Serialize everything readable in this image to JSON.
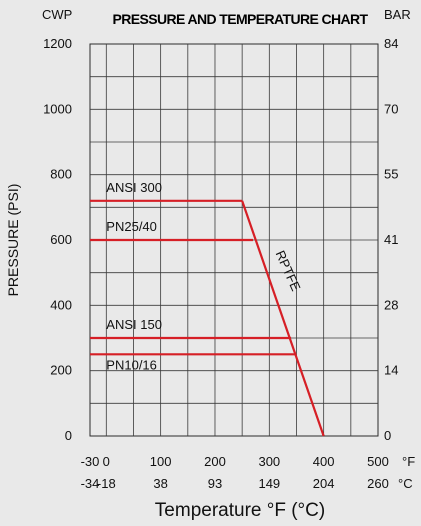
{
  "chart_data": {
    "type": "line",
    "title": "PRESSURE AND TEMPERATURE CHART",
    "left_unit_label": "CWP",
    "right_unit_label": "BAR",
    "ylabel": "PRESSURE (PSI)",
    "xlabel": "Temperature °F (°C)",
    "x_unit_f": "°F",
    "x_unit_c": "°C",
    "xlim": [
      -30,
      500
    ],
    "ylim": [
      0,
      1200
    ],
    "grid": true,
    "x_ticks_f": [
      "-30",
      "0",
      "100",
      "200",
      "300",
      "400",
      "500"
    ],
    "x_ticks_c": [
      "-34",
      "-18",
      "38",
      "93",
      "149",
      "204",
      "260"
    ],
    "y_ticks_left": [
      "0",
      "200",
      "400",
      "600",
      "800",
      "1000",
      "1200"
    ],
    "y_ticks_right": [
      "0",
      "14",
      "28",
      "41",
      "55",
      "70",
      "84"
    ],
    "series": [
      {
        "name": "ANSI 300",
        "x": [
          -30,
          250
        ],
        "y": [
          720,
          720
        ]
      },
      {
        "name": "PN25/40",
        "x": [
          -30,
          270
        ],
        "y": [
          600,
          600
        ]
      },
      {
        "name": "ANSI 150",
        "x": [
          -30,
          340
        ],
        "y": [
          300,
          300
        ]
      },
      {
        "name": "PN10/16",
        "x": [
          -30,
          350
        ],
        "y": [
          250,
          250
        ]
      },
      {
        "name": "RPTFE",
        "x": [
          250,
          400
        ],
        "y": [
          720,
          0
        ]
      }
    ],
    "line_color": "#d61f26"
  }
}
